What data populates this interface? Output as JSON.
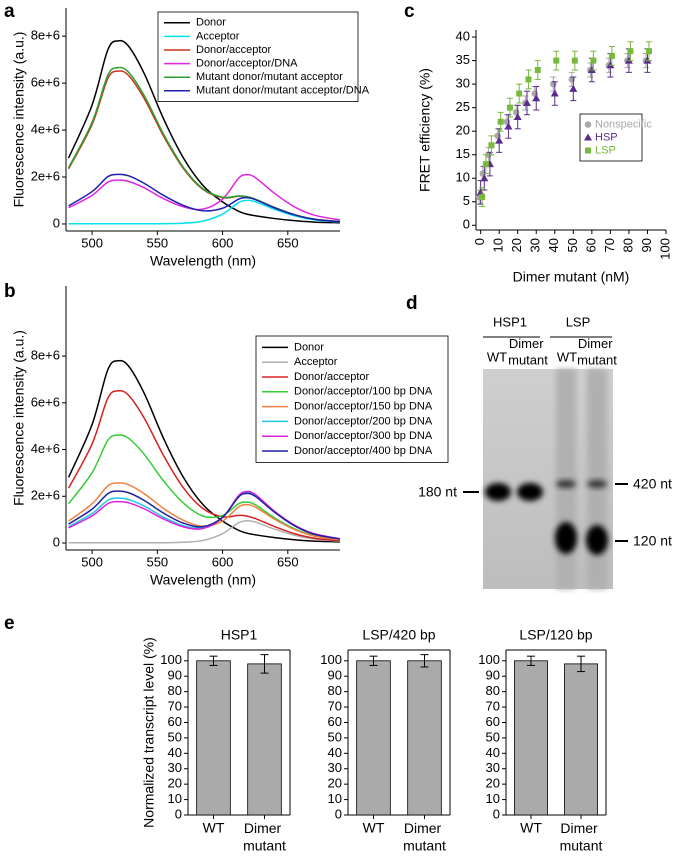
{
  "chart_data": [
    {
      "type": "line",
      "panel_label": "a",
      "x_label": "Wavelength (nm)",
      "y_label": "Fluorescence intensity (a.u.)",
      "x": [
        482,
        500,
        512,
        520,
        528,
        540,
        555,
        570,
        585,
        600,
        612,
        618,
        625,
        640,
        655,
        670,
        690
      ],
      "xlim": [
        480,
        690
      ],
      "xticks": [
        500,
        550,
        600,
        650
      ],
      "ylim": [
        -300000.0,
        9200000.0
      ],
      "yticks": [
        0,
        {
          "value": 2000000.0,
          "label": "2e+6"
        },
        {
          "value": 4000000.0,
          "label": "4e+6"
        },
        {
          "value": 6000000.0,
          "label": "6e+6"
        },
        {
          "value": 8000000.0,
          "label": "8e+6"
        }
      ],
      "legend": "upper right",
      "series": [
        {
          "name": "Donor",
          "color": "#000000",
          "values": [
            2810000.0,
            5070000.0,
            7410000.0,
            7800000.0,
            7570000.0,
            6400000.0,
            4450000.0,
            2810000.0,
            1640000.0,
            940000.0,
            550000.0,
            430000.0,
            350000.0,
            230000.0,
            140000.0,
            80000.0,
            50000.0
          ]
        },
        {
          "name": "Acceptor",
          "color": "#00e0ee",
          "values": [
            10000.0,
            10000.0,
            10000.0,
            10000.0,
            10000.0,
            10000.0,
            10000.0,
            30000.0,
            120000.0,
            420000.0,
            900000.0,
            1000000.0,
            950000.0,
            620000.0,
            350000.0,
            180000.0,
            80000.0
          ]
        },
        {
          "name": "Donor/acceptor",
          "color": "#c8341b",
          "values": [
            2350000.0,
            4240000.0,
            6190000.0,
            6510000.0,
            6320000.0,
            5340000.0,
            3720000.0,
            2360000.0,
            1470000.0,
            1120000.0,
            1180000.0,
            1160000.0,
            1050000.0,
            700000.0,
            400000.0,
            210000.0,
            100000.0
          ]
        },
        {
          "name": "Donor/acceptor/DNA",
          "color": "#e024e0",
          "values": [
            690000.0,
            1220000.0,
            1780000.0,
            1870000.0,
            1810000.0,
            1540000.0,
            1070000.0,
            730000.0,
            630000.0,
            1060000.0,
            1930000.0,
            2100000.0,
            1980000.0,
            1300000.0,
            730000.0,
            380000.0,
            170000.0
          ]
        },
        {
          "name": "Mutant donor/mutant acceptor",
          "color": "#2ca02c",
          "values": [
            2400000.0,
            4330000.0,
            6330000.0,
            6660000.0,
            6460000.0,
            5460000.0,
            3800000.0,
            2410000.0,
            1500000.0,
            1140000.0,
            1190000.0,
            1170000.0,
            1060000.0,
            700000.0,
            400000.0,
            210000.0,
            100000.0
          ]
        },
        {
          "name": "Mutant donor/mutant acceptor/DNA",
          "color": "#1f1fb0",
          "values": [
            770000.0,
            1380000.0,
            2010000.0,
            2110000.0,
            2050000.0,
            1730000.0,
            1210000.0,
            790000.0,
            560000.0,
            670000.0,
            1050000.0,
            1120000.0,
            1040000.0,
            680000.0,
            390000.0,
            200000.0,
            90000.0
          ]
        }
      ]
    },
    {
      "type": "line",
      "panel_label": "b",
      "x_label": "Wavelength (nm)",
      "y_label": "Fluorescence intensity (a.u.)",
      "x": [
        482,
        500,
        512,
        520,
        528,
        540,
        555,
        570,
        585,
        600,
        612,
        618,
        625,
        640,
        655,
        670,
        690
      ],
      "xlim": [
        480,
        690
      ],
      "xticks": [
        500,
        550,
        600,
        650
      ],
      "ylim": [
        -300000.0,
        11000000.0
      ],
      "yticks": [
        0,
        {
          "value": 2000000.0,
          "label": "2e+6"
        },
        {
          "value": 4000000.0,
          "label": "4e+6"
        },
        {
          "value": 6000000.0,
          "label": "6e+6"
        },
        {
          "value": 8000000.0,
          "label": "8e+6"
        }
      ],
      "legend": "upper right",
      "series": [
        {
          "name": "Donor",
          "color": "#000000",
          "values": [
            2810000.0,
            5070000.0,
            7410000.0,
            7800000.0,
            7570000.0,
            6400000.0,
            4450000.0,
            2810000.0,
            1640000.0,
            940000.0,
            550000.0,
            430000.0,
            350000.0,
            230000.0,
            140000.0,
            80000.0,
            50000.0
          ]
        },
        {
          "name": "Acceptor",
          "color": "#b0b0b0",
          "values": [
            10000.0,
            10000.0,
            10000.0,
            10000.0,
            10000.0,
            10000.0,
            10000.0,
            30000.0,
            110000.0,
            400000.0,
            860000.0,
            950000.0,
            900000.0,
            590000.0,
            330000.0,
            170000.0,
            80000.0
          ]
        },
        {
          "name": "Donor/acceptor",
          "color": "#d62020",
          "values": [
            2350000.0,
            4240000.0,
            6190000.0,
            6510000.0,
            6320000.0,
            5340000.0,
            3720000.0,
            2360000.0,
            1470000.0,
            1120000.0,
            1180000.0,
            1160000.0,
            1050000.0,
            700000.0,
            400000.0,
            210000.0,
            100000.0
          ]
        },
        {
          "name": "Donor/acceptor/100 bp DNA",
          "color": "#33cc33",
          "values": [
            1680000.0,
            3010000.0,
            4390000.0,
            4620000.0,
            4480000.0,
            3790000.0,
            2640000.0,
            1710000.0,
            1150000.0,
            1180000.0,
            1670000.0,
            1750000.0,
            1640000.0,
            1070000.0,
            610000.0,
            320000.0,
            150000.0
          ]
        },
        {
          "name": "Donor/acceptor/150 bp DNA",
          "color": "#f08040",
          "values": [
            940000.0,
            1680000.0,
            2440000.0,
            2570000.0,
            2490000.0,
            2110000.0,
            1470000.0,
            970000.0,
            720000.0,
            940000.0,
            1530000.0,
            1640000.0,
            1540000.0,
            1010000.0,
            580000.0,
            300000.0,
            140000.0
          ]
        },
        {
          "name": "Donor/acceptor/200 bp DNA",
          "color": "#20c8e8",
          "values": [
            700000.0,
            1260000.0,
            1830000.0,
            1920000.0,
            1860000.0,
            1580000.0,
            1100000.0,
            740000.0,
            650000.0,
            1090000.0,
            1980000.0,
            2150000.0,
            2040000.0,
            1330000.0,
            750000.0,
            390000.0,
            170000.0
          ]
        },
        {
          "name": "Donor/acceptor/300 bp DNA",
          "color": "#e020e0",
          "values": [
            650000.0,
            1160000.0,
            1680000.0,
            1770000.0,
            1720000.0,
            1460000.0,
            1020000.0,
            690000.0,
            620000.0,
            1090000.0,
            2010000.0,
            2200000.0,
            2080000.0,
            1350000.0,
            770000.0,
            400000.0,
            180000.0
          ]
        },
        {
          "name": "Donor/acceptor/400 bp DNA",
          "color": "#2020a0",
          "values": [
            810000.0,
            1450000.0,
            2110000.0,
            2220000.0,
            2150000.0,
            1820000.0,
            1270000.0,
            850000.0,
            700000.0,
            1100000.0,
            1950000.0,
            2120000.0,
            2000000.0,
            1310000.0,
            740000.0,
            380000.0,
            170000.0
          ]
        }
      ]
    },
    {
      "type": "scatter",
      "panel_label": "c",
      "x_label": "Dimer mutant (nM)",
      "y_label": "FRET efficiency (%)",
      "x": [
        0,
        2,
        5,
        10,
        15,
        20,
        25,
        30,
        40,
        50,
        60,
        70,
        80,
        90
      ],
      "xlim": [
        -2.5,
        100
      ],
      "xticks": [
        0,
        10,
        20,
        30,
        40,
        50,
        60,
        70,
        80,
        90,
        100
      ],
      "ylim": [
        -1,
        41.5
      ],
      "yticks": [
        0,
        5,
        10,
        15,
        20,
        25,
        30,
        35,
        40
      ],
      "legend": "center right",
      "series": [
        {
          "name": "Nonspecific",
          "color": "#a8a8a8",
          "marker": "circle",
          "values": [
            6,
            11,
            15,
            19,
            22,
            24,
            26,
            28,
            30,
            31,
            33,
            34,
            35,
            35
          ],
          "errors": [
            1.5,
            1.5,
            1.5,
            1.5,
            1.5,
            1.5,
            1.5,
            1.5,
            1.5,
            1.5,
            1.5,
            1.5,
            1.5,
            1.5
          ]
        },
        {
          "name": "HSP",
          "color": "#5b2c8c",
          "marker": "triangle",
          "values": [
            7,
            10,
            13,
            18,
            21,
            23,
            26,
            27,
            28,
            29,
            33,
            34,
            35,
            35
          ],
          "errors": [
            2.5,
            2.5,
            2.5,
            2.5,
            2.5,
            2.5,
            2.5,
            2.5,
            2.5,
            2.5,
            2.5,
            2.5,
            2.5,
            2.5
          ]
        },
        {
          "name": "LSP",
          "color": "#78b83c",
          "marker": "square",
          "values": [
            6,
            13,
            17,
            22,
            25,
            28,
            31,
            33,
            35,
            35,
            35,
            36,
            37,
            37
          ],
          "errors": [
            2,
            2,
            2,
            2,
            2,
            2,
            2,
            2,
            2,
            2,
            2,
            2,
            2,
            2
          ]
        }
      ]
    },
    {
      "type": "bar",
      "panel_label": "e",
      "title": "HSP1",
      "y_label": "Normalized transcript level (%)",
      "categories": [
        "WT",
        "Dimer mutant"
      ],
      "values": [
        100,
        98
      ],
      "errors": [
        3,
        6
      ],
      "color": "#aaaaaa",
      "ylim": [
        0,
        107
      ],
      "yticks": [
        0,
        10,
        20,
        30,
        40,
        50,
        60,
        70,
        80,
        90,
        100
      ]
    },
    {
      "type": "bar",
      "title": "LSP/420 bp",
      "categories": [
        "WT",
        "Dimer mutant"
      ],
      "values": [
        100,
        100
      ],
      "errors": [
        3,
        4
      ],
      "color": "#aaaaaa",
      "ylim": [
        0,
        107
      ],
      "yticks": [
        0,
        10,
        20,
        30,
        40,
        50,
        60,
        70,
        80,
        90,
        100
      ]
    },
    {
      "type": "bar",
      "title": "LSP/120 bp",
      "categories": [
        "WT",
        "Dimer mutant"
      ],
      "values": [
        100,
        98
      ],
      "errors": [
        3,
        5
      ],
      "color": "#aaaaaa",
      "ylim": [
        0,
        107
      ],
      "yticks": [
        0,
        10,
        20,
        30,
        40,
        50,
        60,
        70,
        80,
        90,
        100
      ]
    }
  ],
  "gel": {
    "panel_label": "d",
    "groups": [
      "HSP1",
      "LSP"
    ],
    "lanes": [
      "WT",
      "Dimer mutant",
      "WT",
      "Dimer mutant"
    ],
    "markers": [
      "420 nt",
      "180 nt",
      "120 nt"
    ]
  }
}
